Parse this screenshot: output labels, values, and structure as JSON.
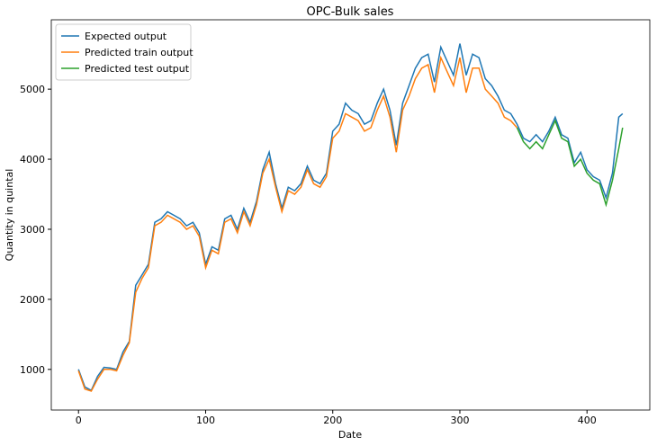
{
  "chart_data": {
    "type": "line",
    "title": "OPC-Bulk sales",
    "x_label": "Date",
    "y_label": "Quantity in quintal",
    "x": [
      0,
      5,
      10,
      15,
      20,
      25,
      30,
      35,
      40,
      45,
      50,
      55,
      60,
      65,
      70,
      75,
      80,
      85,
      90,
      95,
      100,
      105,
      110,
      115,
      120,
      125,
      130,
      135,
      140,
      145,
      150,
      155,
      160,
      165,
      170,
      175,
      180,
      185,
      190,
      195,
      200,
      205,
      210,
      215,
      220,
      225,
      230,
      235,
      240,
      245,
      250,
      255,
      260,
      265,
      270,
      275,
      280,
      285,
      290,
      295,
      300,
      305,
      310,
      315,
      320,
      325,
      330,
      335,
      340,
      345,
      350,
      355,
      360,
      365,
      370,
      375,
      380,
      385,
      390,
      395,
      400,
      405,
      410,
      415,
      420,
      425,
      428
    ],
    "series": [
      {
        "name": "Expected output",
        "color": "#1f77b4",
        "values": [
          1000,
          750,
          700,
          900,
          1030,
          1020,
          1000,
          1250,
          1400,
          2200,
          2350,
          2500,
          3100,
          3150,
          3250,
          3200,
          3150,
          3050,
          3100,
          2950,
          2500,
          2750,
          2700,
          3150,
          3200,
          3000,
          3300,
          3100,
          3400,
          3850,
          4100,
          3650,
          3300,
          3600,
          3550,
          3650,
          3900,
          3700,
          3650,
          3800,
          4400,
          4500,
          4800,
          4700,
          4650,
          4500,
          4550,
          4800,
          5000,
          4700,
          4200,
          4800,
          5050,
          5300,
          5450,
          5500,
          5100,
          5600,
          5400,
          5200,
          5650,
          5200,
          5500,
          5450,
          5150,
          5050,
          4900,
          4700,
          4650,
          4500,
          4300,
          4250,
          4350,
          4250,
          4400,
          4600,
          4350,
          4300,
          3950,
          4100,
          3850,
          3750,
          3700,
          3450,
          3800,
          4600,
          4650
        ]
      },
      {
        "name": "Predicted train output",
        "color": "#ff7f0e",
        "values": [
          980,
          720,
          690,
          860,
          1000,
          1000,
          980,
          1200,
          1380,
          2100,
          2300,
          2450,
          3050,
          3100,
          3200,
          3150,
          3100,
          3000,
          3050,
          2900,
          2450,
          2700,
          2650,
          3100,
          3150,
          2950,
          3250,
          3050,
          3350,
          3800,
          4000,
          3600,
          3250,
          3550,
          3500,
          3600,
          3850,
          3650,
          3600,
          3750,
          4300,
          4400,
          4650,
          4600,
          4550,
          4400,
          4450,
          4700,
          4900,
          4600,
          4100,
          4700,
          4900,
          5150,
          5300,
          5350,
          4950,
          5450,
          5250,
          5050,
          5450,
          4950,
          5300,
          5300,
          5000,
          4900,
          4800,
          4600,
          4550,
          4450,
          null,
          null,
          null,
          null,
          null,
          null,
          null,
          null,
          null,
          null,
          null,
          null,
          null,
          null,
          null,
          null,
          null
        ]
      },
      {
        "name": "Predicted test output",
        "color": "#2ca02c",
        "values": [
          null,
          null,
          null,
          null,
          null,
          null,
          null,
          null,
          null,
          null,
          null,
          null,
          null,
          null,
          null,
          null,
          null,
          null,
          null,
          null,
          null,
          null,
          null,
          null,
          null,
          null,
          null,
          null,
          null,
          null,
          null,
          null,
          null,
          null,
          null,
          null,
          null,
          null,
          null,
          null,
          null,
          null,
          null,
          null,
          null,
          null,
          null,
          null,
          null,
          null,
          null,
          null,
          null,
          null,
          null,
          null,
          null,
          null,
          null,
          null,
          null,
          null,
          null,
          null,
          null,
          null,
          null,
          null,
          null,
          4450,
          4250,
          4150,
          4250,
          4150,
          4350,
          4550,
          4300,
          4250,
          3900,
          4000,
          3800,
          3700,
          3650,
          3350,
          3700,
          4150,
          4450
        ]
      }
    ],
    "xlim": [
      -21.4,
      449.4
    ],
    "ylim": [
      420,
      5990
    ],
    "xticks": [
      0,
      100,
      200,
      300,
      400
    ],
    "yticks": [
      1000,
      2000,
      3000,
      4000,
      5000
    ],
    "legend": "upper left"
  }
}
